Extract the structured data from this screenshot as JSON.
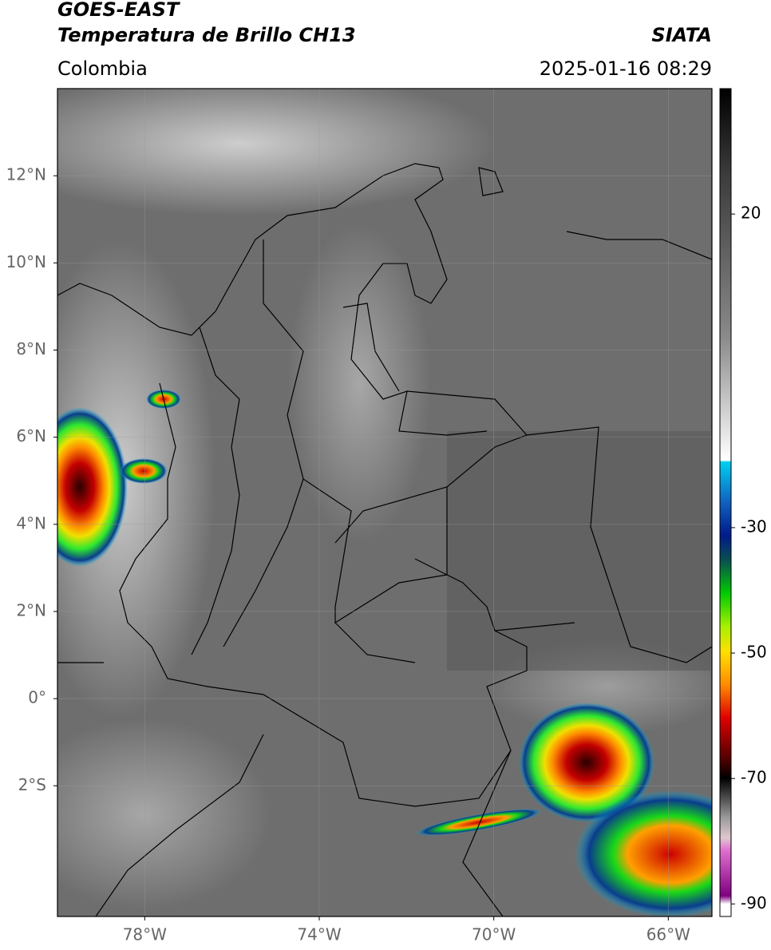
{
  "chart_data": {
    "type": "map",
    "title": "GOES-EAST",
    "subtitle": "Temperatura de Brillo CH13",
    "source": "SIATA",
    "region": "Colombia",
    "datetime": "2025-01-16 08:29",
    "xlim": [
      -80,
      -65
    ],
    "ylim": [
      -5,
      14
    ],
    "xticks": [
      {
        "value": -78,
        "label": "78°W"
      },
      {
        "value": -74,
        "label": "74°W"
      },
      {
        "value": -70,
        "label": "70°W"
      },
      {
        "value": -66,
        "label": "66°W"
      }
    ],
    "yticks": [
      {
        "value": 12,
        "label": "12°N"
      },
      {
        "value": 10,
        "label": "10°N"
      },
      {
        "value": 8,
        "label": "8°N"
      },
      {
        "value": 6,
        "label": "6°N"
      },
      {
        "value": 4,
        "label": "4°N"
      },
      {
        "value": 2,
        "label": "2°N"
      },
      {
        "value": 0,
        "label": "0°"
      },
      {
        "value": -2,
        "label": "2°S"
      }
    ],
    "grid": true,
    "colorbar": {
      "lim": [
        -92,
        40
      ],
      "ticks": [
        20,
        -30,
        -50,
        -70,
        -90
      ]
    }
  }
}
